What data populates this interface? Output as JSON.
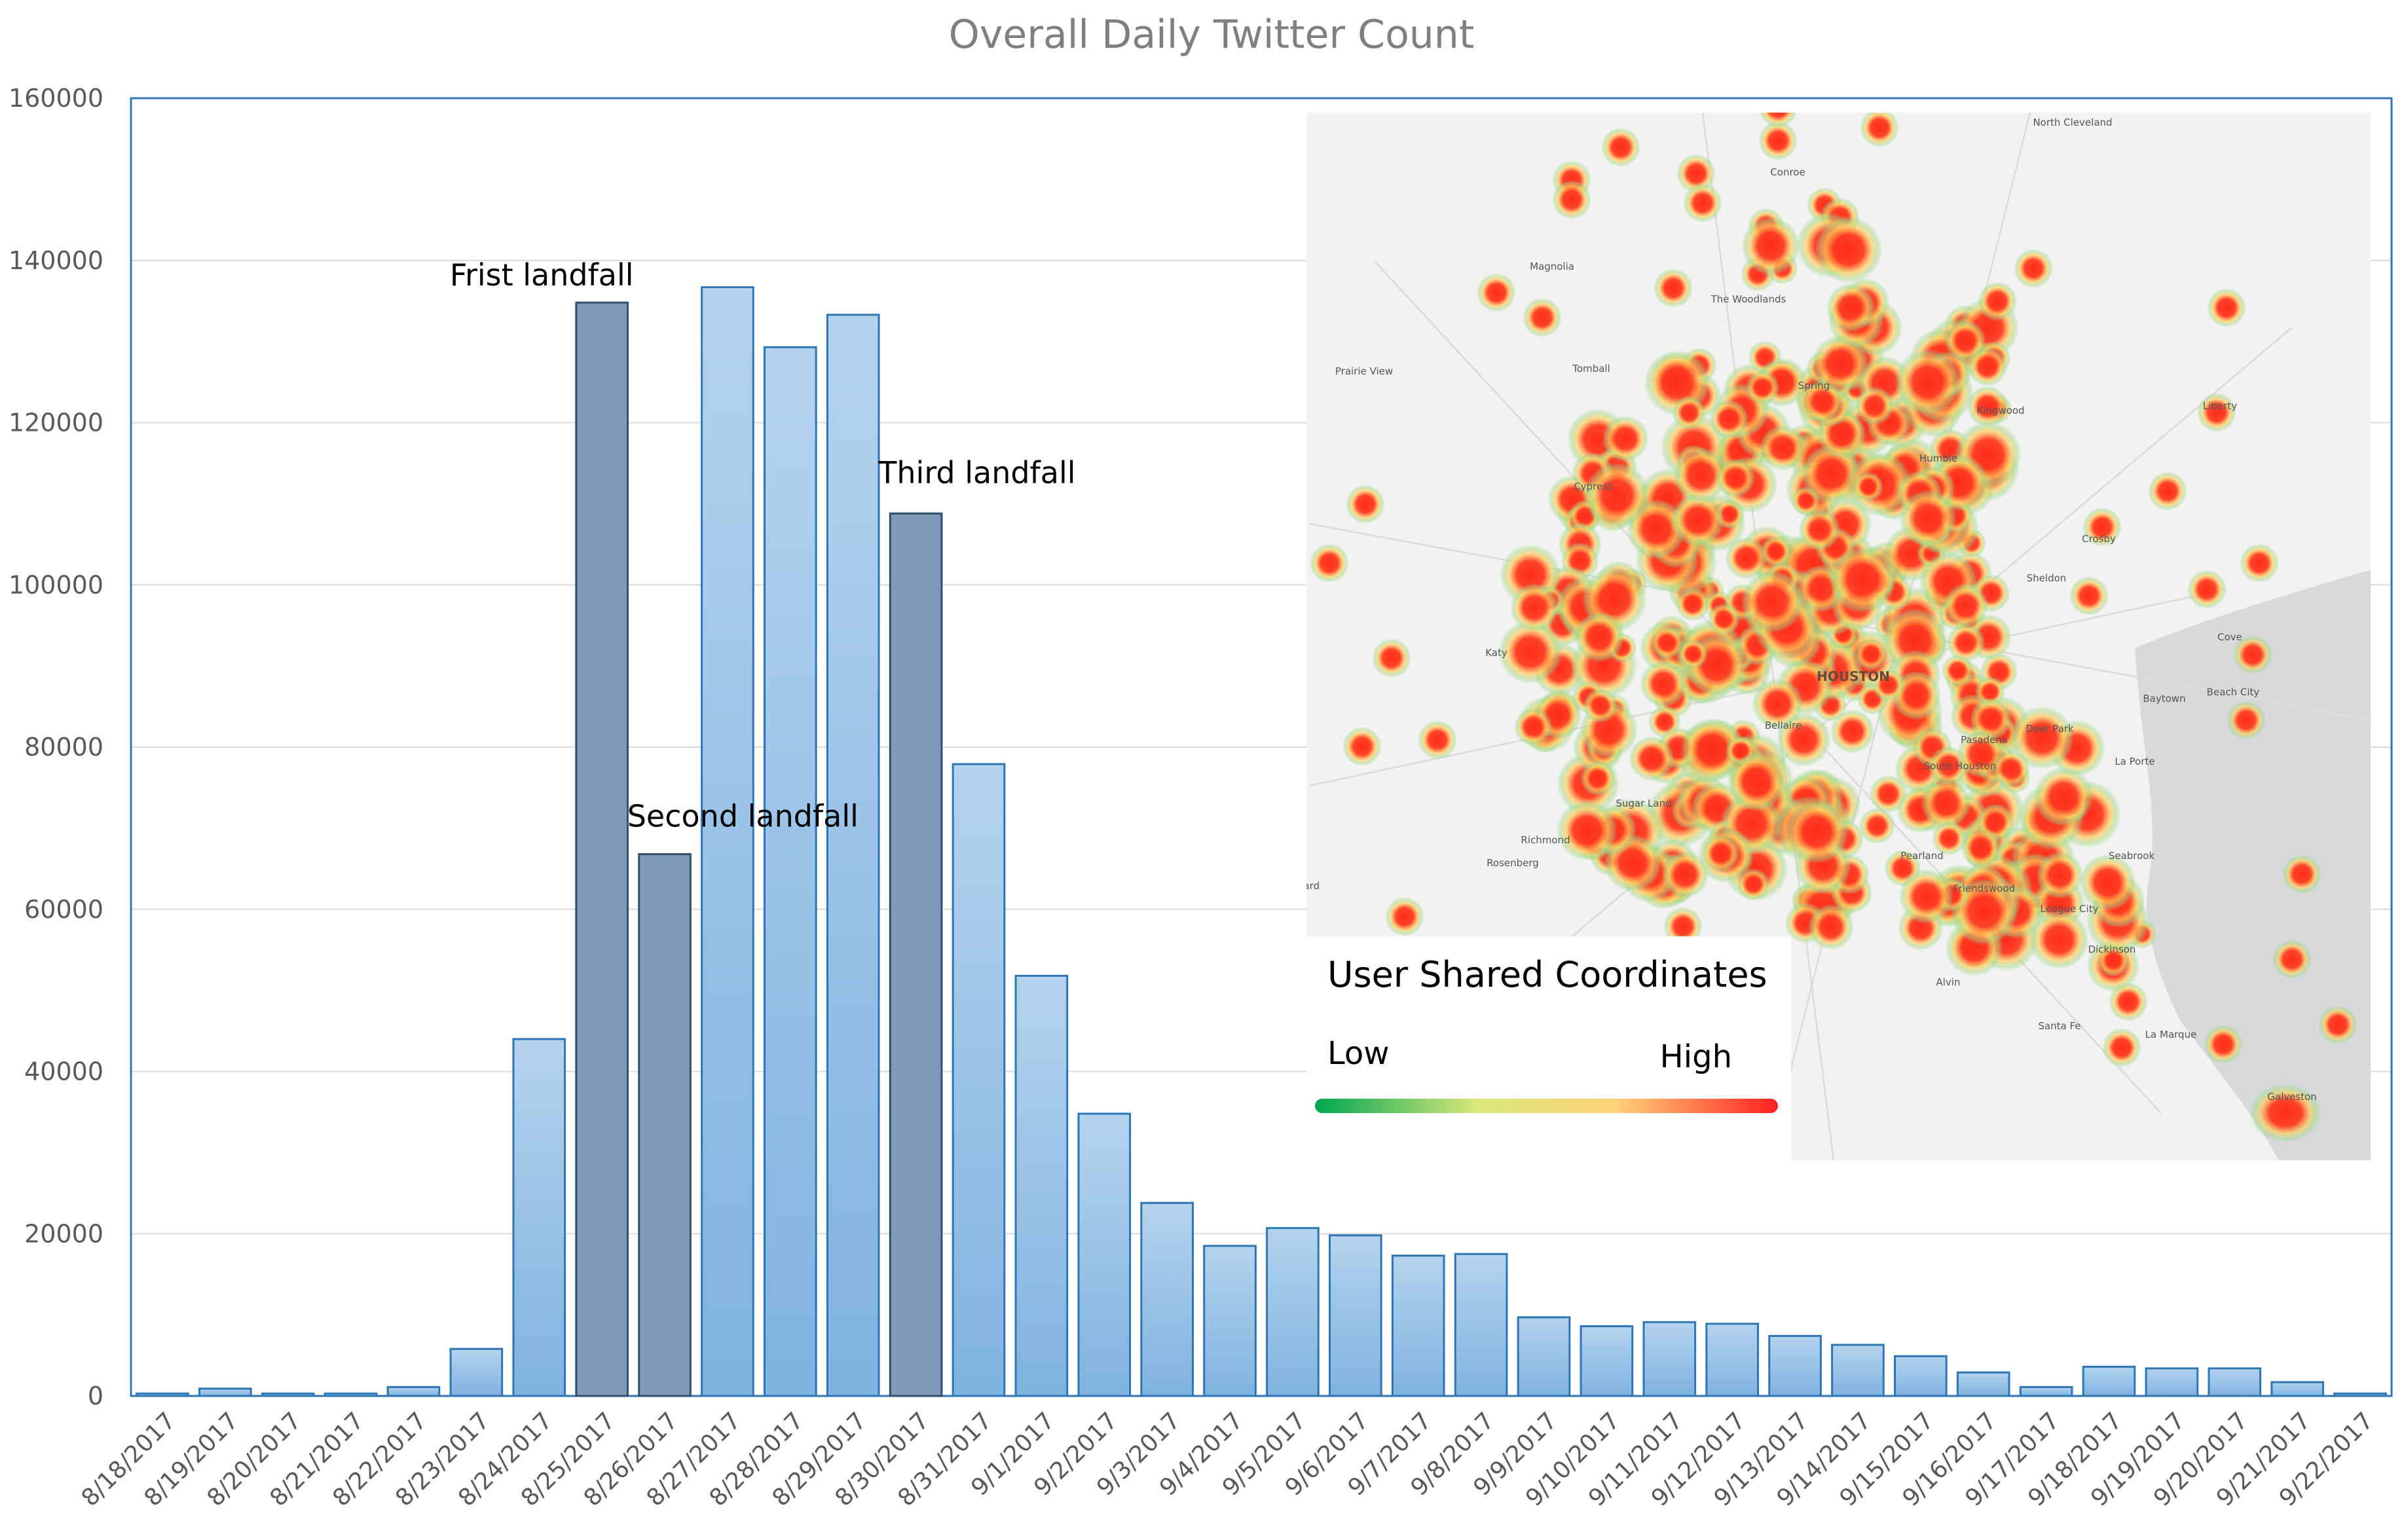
{
  "chart_data": {
    "type": "bar",
    "title": "Overall Daily Twitter Count",
    "xlabel": "",
    "ylabel": "",
    "ylim": [
      0,
      160000
    ],
    "yticks": [
      "0",
      "20000",
      "40000",
      "60000",
      "80000",
      "100000",
      "120000",
      "140000",
      "160000"
    ],
    "grid": true,
    "categories": [
      "8/18/2017",
      "8/19/2017",
      "8/20/2017",
      "8/21/2017",
      "8/22/2017",
      "8/23/2017",
      "8/24/2017",
      "8/25/2017",
      "8/26/2017",
      "8/27/2017",
      "8/28/2017",
      "8/29/2017",
      "8/30/2017",
      "8/31/2017",
      "9/1/2017",
      "9/2/2017",
      "9/3/2017",
      "9/4/2017",
      "9/5/2017",
      "9/6/2017",
      "9/7/2017",
      "9/8/2017",
      "9/9/2017",
      "9/10/2017",
      "9/11/2017",
      "9/12/2017",
      "9/13/2017",
      "9/14/2017",
      "9/15/2017",
      "9/16/2017",
      "9/17/2017",
      "9/18/2017",
      "9/19/2017",
      "9/20/2017",
      "9/21/2017",
      "9/22/2017"
    ],
    "values": [
      300,
      900,
      300,
      300,
      1100,
      5800,
      44000,
      134800,
      66800,
      136700,
      129300,
      133300,
      108800,
      77900,
      51800,
      34800,
      23800,
      18500,
      20700,
      19800,
      17300,
      17500,
      9700,
      8600,
      9100,
      8900,
      7400,
      6300,
      4900,
      2900,
      1100,
      3600,
      3400,
      3400,
      1700,
      300
    ],
    "highlighted": [
      "8/25/2017",
      "8/26/2017",
      "8/30/2017"
    ],
    "annotations": [
      {
        "text": "Frist landfall",
        "category": "8/25/2017"
      },
      {
        "text": "Second landfall",
        "category": "8/26/2017"
      },
      {
        "text": "Third landfall",
        "category": "8/30/2017"
      }
    ],
    "colors": {
      "bar": "#9dc3e6",
      "bar_edge": "#2e75b6",
      "highlight": "#7f9ab8",
      "highlight_edge": "#2f4f6f",
      "grid": "#d9d9d9",
      "frame": "#2e75b6"
    }
  },
  "inset_map": {
    "legend_title": "User Shared Coordinates",
    "legend_low": "Low",
    "legend_high": "High",
    "gradient_colors": [
      "#00a651",
      "#d8e87a",
      "#ffd27a",
      "#ff2020"
    ],
    "place_labels": [
      "North Cleveland",
      "Conroe",
      "Magnolia",
      "The Woodlands",
      "Prairie View",
      "Tomball",
      "Spring",
      "Kingwood",
      "Liberty",
      "Humble",
      "Cypress",
      "Crosby",
      "Sheldon",
      "Katy",
      "HOUSTON",
      "Cove",
      "Baytown",
      "Beach City",
      "Bellaire",
      "Deer Park",
      "Pasadena",
      "South Houston",
      "La Porte",
      "Sugar Land",
      "Richmond",
      "Rosenberg",
      "Pearland",
      "Friendswood",
      "Seabrook",
      "League City",
      "Dickinson",
      "Alvin",
      "Santa Fe",
      "La Marque",
      "Galveston",
      "rnard"
    ]
  }
}
